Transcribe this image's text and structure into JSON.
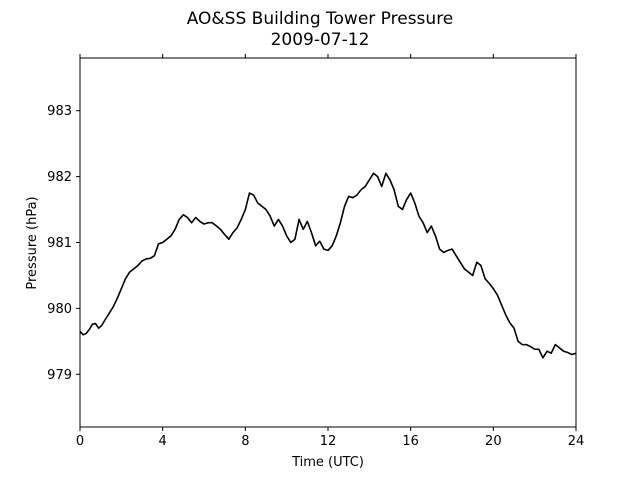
{
  "chart_data": {
    "type": "line",
    "title": "AO&SS Building Tower Pressure",
    "subtitle": "2009-07-12",
    "xlabel": "Time (UTC)",
    "ylabel": "Pressure (hPa)",
    "xlim": [
      0,
      24
    ],
    "ylim": [
      978.2,
      983.8
    ],
    "xticks": [
      0,
      4,
      8,
      12,
      16,
      20,
      24
    ],
    "yticks": [
      979,
      980,
      981,
      982,
      983
    ],
    "grid": false,
    "line_color": "#000000",
    "series": [
      {
        "x": [
          0,
          0.15,
          0.3,
          0.45,
          0.6,
          0.75,
          0.9,
          1.05,
          1.2,
          1.4,
          1.6,
          1.8,
          2.0,
          2.2,
          2.4,
          2.6,
          2.8,
          3.0,
          3.2,
          3.4,
          3.6,
          3.8,
          4.0,
          4.2,
          4.4,
          4.6,
          4.8,
          5.0,
          5.2,
          5.4,
          5.6,
          5.8,
          6.0,
          6.2,
          6.4,
          6.6,
          6.8,
          7.0,
          7.2,
          7.4,
          7.6,
          7.8,
          8.0,
          8.2,
          8.4,
          8.6,
          8.8,
          9.0,
          9.2,
          9.4,
          9.6,
          9.8,
          10.0,
          10.2,
          10.4,
          10.6,
          10.8,
          11.0,
          11.2,
          11.4,
          11.6,
          11.8,
          12.0,
          12.2,
          12.4,
          12.6,
          12.8,
          13.0,
          13.2,
          13.4,
          13.6,
          13.8,
          14.0,
          14.2,
          14.4,
          14.6,
          14.8,
          15.0,
          15.2,
          15.4,
          15.6,
          15.8,
          16.0,
          16.2,
          16.4,
          16.6,
          16.8,
          17.0,
          17.2,
          17.4,
          17.6,
          17.8,
          18.0,
          18.2,
          18.4,
          18.6,
          18.8,
          19.0,
          19.2,
          19.4,
          19.6,
          19.8,
          20.0,
          20.2,
          20.4,
          20.6,
          20.8,
          21.0,
          21.2,
          21.4,
          21.6,
          21.8,
          22.0,
          22.2,
          22.4,
          22.6,
          22.8,
          23.0,
          23.2,
          23.4,
          23.6,
          23.8,
          24.0
        ],
        "y": [
          979.65,
          979.6,
          979.62,
          979.68,
          979.76,
          979.77,
          979.7,
          979.74,
          979.82,
          979.92,
          980.02,
          980.15,
          980.3,
          980.45,
          980.55,
          980.6,
          980.65,
          980.72,
          980.75,
          980.76,
          980.8,
          980.98,
          981.0,
          981.05,
          981.1,
          981.2,
          981.35,
          981.42,
          981.38,
          981.3,
          981.38,
          981.32,
          981.28,
          981.3,
          981.3,
          981.25,
          981.2,
          981.12,
          981.05,
          981.15,
          981.22,
          981.35,
          981.5,
          981.75,
          981.72,
          981.6,
          981.55,
          981.5,
          981.4,
          981.25,
          981.35,
          981.25,
          981.1,
          981.0,
          981.05,
          981.35,
          981.2,
          981.32,
          981.15,
          980.95,
          981.02,
          980.9,
          980.88,
          980.95,
          981.1,
          981.3,
          981.55,
          981.7,
          981.68,
          981.72,
          981.8,
          981.85,
          981.95,
          982.05,
          982.0,
          981.85,
          982.05,
          981.95,
          981.8,
          981.55,
          981.5,
          981.65,
          981.75,
          981.6,
          981.4,
          981.3,
          981.15,
          981.25,
          981.1,
          980.9,
          980.85,
          980.88,
          980.9,
          980.8,
          980.7,
          980.6,
          980.55,
          980.5,
          980.7,
          980.65,
          980.45,
          980.38,
          980.3,
          980.2,
          980.05,
          979.9,
          979.78,
          979.7,
          979.5,
          979.45,
          979.45,
          979.42,
          979.38,
          979.38,
          979.25,
          979.35,
          979.32,
          979.45,
          979.4,
          979.35,
          979.33,
          979.3,
          979.32
        ]
      }
    ]
  }
}
